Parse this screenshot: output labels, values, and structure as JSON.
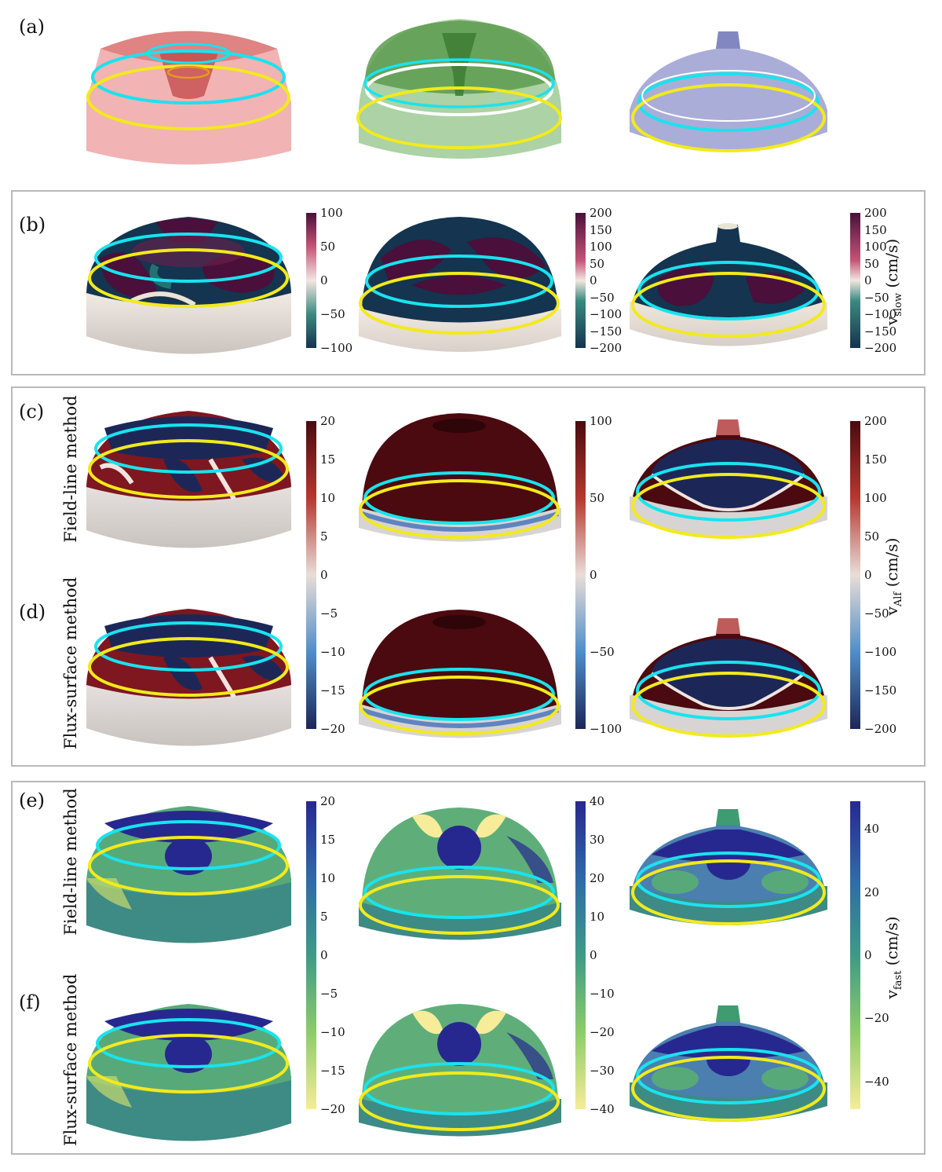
{
  "panels": {
    "a": "(a)",
    "b": "(b)",
    "c": "(c)",
    "d": "(d)",
    "e": "(e)",
    "f": "(f)"
  },
  "row_labels": {
    "c": "Field-line method",
    "d": "Flux-surface method",
    "e": "Field-line method",
    "f": "Flux-surface method"
  },
  "quantities": {
    "slow": {
      "sym": "v",
      "sub": "slow",
      "unit": "(cm/s)"
    },
    "alf": {
      "sym": "v",
      "sub": "Alf",
      "unit": "(cm/s)"
    },
    "fast": {
      "sym": "v",
      "sub": "fast",
      "unit": "(cm/s)"
    }
  },
  "colorbars": {
    "b1": [
      "100",
      "50",
      "0",
      "−50",
      "−100"
    ],
    "b2": [
      "200",
      "150",
      "100",
      "50",
      "0",
      "−50",
      "−100",
      "−150",
      "−200"
    ],
    "b3": [
      "200",
      "150",
      "100",
      "50",
      "0",
      "−50",
      "−100",
      "−150",
      "−200"
    ],
    "cd1": [
      "20",
      "15",
      "10",
      "5",
      "0",
      "−5",
      "−10",
      "−15",
      "−20"
    ],
    "cd2": [
      "100",
      "50",
      "0",
      "−50",
      "−100"
    ],
    "cd3": [
      "200",
      "150",
      "100",
      "50",
      "0",
      "−50",
      "−100",
      "−150",
      "−200"
    ],
    "ef1": [
      "20",
      "15",
      "10",
      "5",
      "0",
      "−5",
      "−10",
      "−15",
      "−20"
    ],
    "ef2": [
      "40",
      "30",
      "20",
      "10",
      "0",
      "−10",
      "−20",
      "−30",
      "−40"
    ],
    "ef3": [
      "40",
      "20",
      "0",
      "−20",
      "−40"
    ]
  },
  "colors": {
    "ring_cyan": "#19e3ef",
    "ring_yellow": "#f2ea1c",
    "red_surface": "#e98b8b",
    "green_surface": "#8cbf86",
    "blue_surface": "#9ea0cc",
    "slow_pos": "#4a0f3a",
    "slow_neg": "#14344f",
    "alf_pos": "#4a0a0f",
    "alf_neg": "#1c2758",
    "fast_pos": "#27288f",
    "fast_neg": "#f6ec9a"
  }
}
